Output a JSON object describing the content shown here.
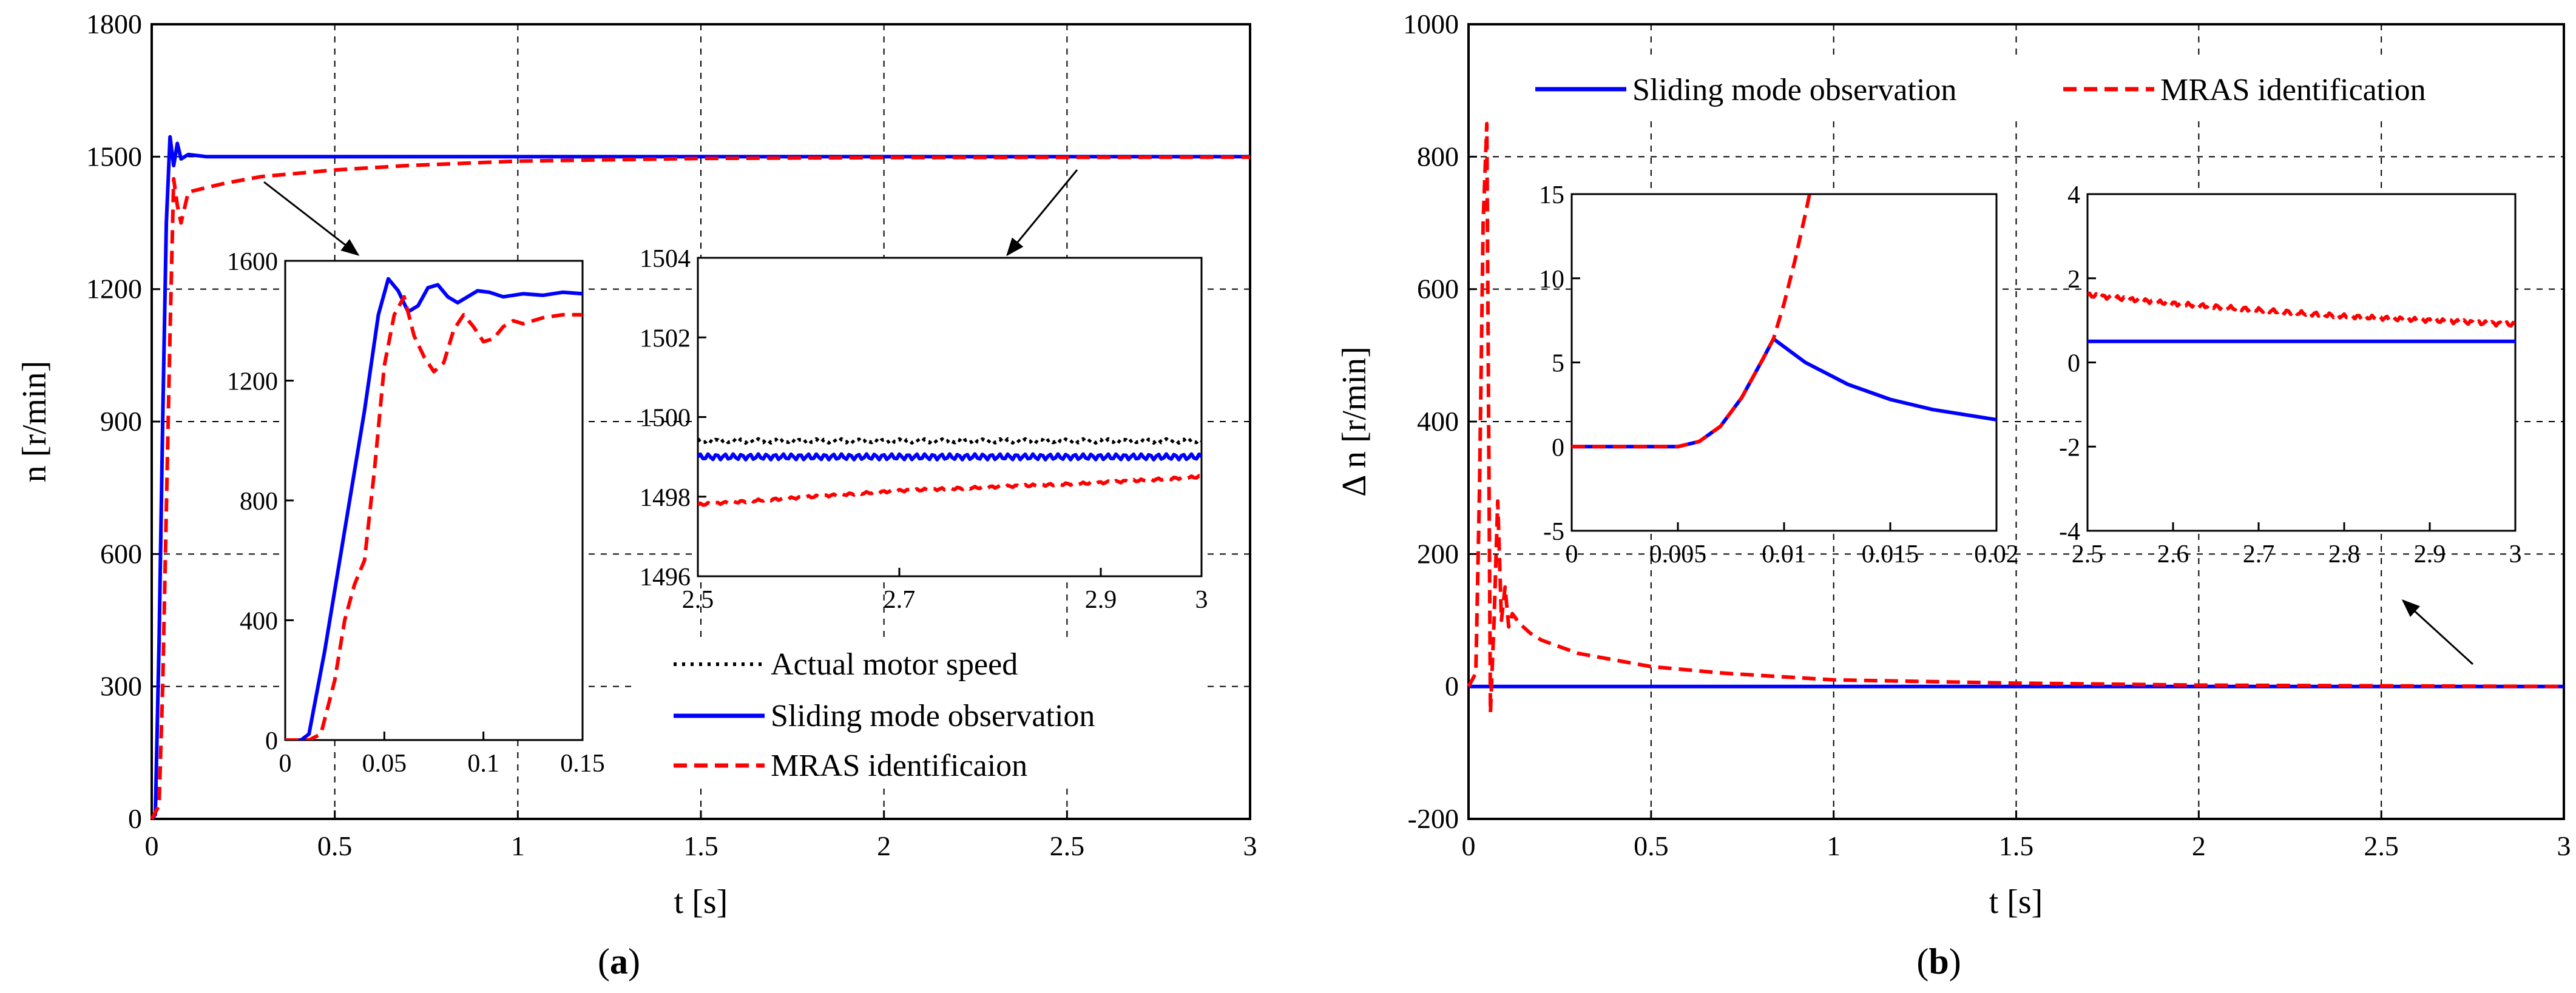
{
  "chart_data": [
    {
      "id": "a",
      "type": "line",
      "panel_label_open": "(",
      "panel_label_letter": "a",
      "panel_label_close": ")",
      "xlabel": "t [s]",
      "ylabel": "n  [r/min]",
      "xlim": [
        0,
        3
      ],
      "ylim": [
        0,
        1800
      ],
      "xticks": [
        0,
        0.5,
        1,
        1.5,
        2,
        2.5,
        3
      ],
      "xtick_labels": [
        "0",
        "0.5",
        "1",
        "1.5",
        "2",
        "2.5",
        "3"
      ],
      "yticks": [
        0,
        300,
        600,
        900,
        1200,
        1500,
        1800
      ],
      "ytick_labels": [
        "0",
        "300",
        "600",
        "900",
        "1200",
        "1500",
        "1800"
      ],
      "grid": true,
      "legend": [
        {
          "label": "Actual motor speed",
          "color": "#000000",
          "style": "dotted"
        },
        {
          "label": "Sliding mode observation",
          "color": "#0000ff",
          "style": "solid"
        },
        {
          "label": "MRAS  identificaion",
          "color": "#ff0000",
          "style": "dashed"
        }
      ],
      "series": [
        {
          "name": "Sliding mode observation",
          "color": "#0000ff",
          "x": [
            0,
            0.01,
            0.02,
            0.03,
            0.04,
            0.05,
            0.06,
            0.07,
            0.08,
            0.1,
            0.15,
            3
          ],
          "y": [
            0,
            10,
            400,
            900,
            1350,
            1545,
            1480,
            1530,
            1495,
            1505,
            1500,
            1500
          ]
        },
        {
          "name": "MRAS  identificaion",
          "color": "#ff0000",
          "x": [
            0,
            0.02,
            0.03,
            0.04,
            0.05,
            0.06,
            0.07,
            0.08,
            0.1,
            0.15,
            0.2,
            0.3,
            0.5,
            0.7,
            1.0,
            1.5,
            2,
            3
          ],
          "y": [
            0,
            30,
            300,
            700,
            1100,
            1450,
            1390,
            1350,
            1420,
            1430,
            1440,
            1455,
            1470,
            1480,
            1490,
            1496,
            1498,
            1499
          ]
        }
      ],
      "insets": [
        {
          "xlim": [
            0,
            0.15
          ],
          "ylim": [
            0,
            1600
          ],
          "xticks": [
            0,
            0.05,
            0.1,
            0.15
          ],
          "xtick_labels": [
            "0",
            "0.05",
            "0.1",
            "0.15"
          ],
          "yticks": [
            0,
            400,
            800,
            1200,
            1600
          ],
          "ytick_labels": [
            "0",
            "400",
            "800",
            "1200",
            "1600"
          ],
          "series": [
            {
              "name": "Sliding mode observation",
              "color": "#0000ff",
              "x": [
                0,
                0.008,
                0.012,
                0.02,
                0.03,
                0.04,
                0.047,
                0.052,
                0.057,
                0.062,
                0.067,
                0.072,
                0.077,
                0.082,
                0.087,
                0.092,
                0.097,
                0.103,
                0.11,
                0.12,
                0.13,
                0.14,
                0.15
              ],
              "y": [
                0,
                0,
                20,
                300,
                700,
                1100,
                1420,
                1540,
                1500,
                1430,
                1450,
                1510,
                1520,
                1480,
                1460,
                1480,
                1500,
                1495,
                1480,
                1490,
                1485,
                1495,
                1490
              ]
            },
            {
              "name": "MRAS  identificaion",
              "color": "#ff0000",
              "x": [
                0,
                0.012,
                0.018,
                0.025,
                0.03,
                0.035,
                0.04,
                0.045,
                0.05,
                0.055,
                0.06,
                0.065,
                0.07,
                0.075,
                0.08,
                0.085,
                0.09,
                0.095,
                0.1,
                0.105,
                0.11,
                0.115,
                0.12,
                0.13,
                0.14,
                0.15
              ],
              "y": [
                0,
                0,
                20,
                200,
                400,
                520,
                600,
                900,
                1250,
                1420,
                1480,
                1350,
                1280,
                1230,
                1260,
                1370,
                1420,
                1380,
                1330,
                1340,
                1380,
                1400,
                1390,
                1410,
                1420,
                1420
              ]
            }
          ]
        },
        {
          "xlim": [
            2.5,
            3
          ],
          "ylim": [
            1496,
            1504
          ],
          "xticks": [
            2.5,
            2.7,
            2.9,
            3
          ],
          "xtick_labels": [
            "2.5",
            "2.7",
            "2.9",
            "3"
          ],
          "yticks": [
            1496,
            1498,
            1500,
            1502,
            1504
          ],
          "ytick_labels": [
            "1496",
            "1498",
            "1500",
            "1502",
            "1504"
          ],
          "series": [
            {
              "name": "Actual motor speed",
              "color": "#000000",
              "style": "dotted",
              "x": [
                2.5,
                3
              ],
              "y": [
                1499.4,
                1499.4
              ],
              "ripple": 0.05
            },
            {
              "name": "Sliding mode observation",
              "color": "#0000ff",
              "style": "solid",
              "x": [
                2.5,
                3
              ],
              "y": [
                1499.0,
                1499.0
              ],
              "ripple": 0.07
            },
            {
              "name": "MRAS  identificaion",
              "color": "#ff0000",
              "style": "dashed",
              "x": [
                2.5,
                2.7,
                2.9,
                3
              ],
              "y": [
                1497.8,
                1498.15,
                1498.35,
                1498.5
              ],
              "ripple": 0.03
            }
          ]
        }
      ]
    },
    {
      "id": "b",
      "type": "line",
      "panel_label_open": "(",
      "panel_label_letter": "b",
      "panel_label_close": ")",
      "xlabel": "t [s]",
      "ylabel": "Δ n [r/min]",
      "xlim": [
        0,
        3
      ],
      "ylim": [
        -200,
        1000
      ],
      "xticks": [
        0,
        0.5,
        1,
        1.5,
        2,
        2.5,
        3
      ],
      "xtick_labels": [
        "0",
        "0.5",
        "1",
        "1.5",
        "2",
        "2.5",
        "3"
      ],
      "yticks": [
        -200,
        0,
        200,
        400,
        600,
        800,
        1000
      ],
      "ytick_labels": [
        "-200",
        "0",
        "200",
        "400",
        "600",
        "800",
        "1000"
      ],
      "grid": true,
      "legend": [
        {
          "label": "Sliding mode observation",
          "color": "#0000ff",
          "style": "solid"
        },
        {
          "label": "MRAS identification",
          "color": "#ff0000",
          "style": "dashed"
        }
      ],
      "series": [
        {
          "name": "Sliding mode observation",
          "color": "#0000ff",
          "x": [
            0,
            0.01,
            3
          ],
          "y": [
            0,
            0,
            0
          ]
        },
        {
          "name": "MRAS identification",
          "color": "#ff0000",
          "x": [
            0,
            0.02,
            0.03,
            0.04,
            0.05,
            0.06,
            0.07,
            0.08,
            0.09,
            0.1,
            0.11,
            0.12,
            0.14,
            0.17,
            0.2,
            0.3,
            0.5,
            0.7,
            1.0,
            1.5,
            2,
            3
          ],
          "y": [
            0,
            20,
            300,
            700,
            850,
            -40,
            100,
            280,
            100,
            150,
            90,
            110,
            95,
            80,
            70,
            50,
            30,
            20,
            10,
            5,
            2,
            0
          ]
        }
      ],
      "insets": [
        {
          "xlim": [
            0,
            0.02
          ],
          "ylim": [
            -5,
            15
          ],
          "xticks": [
            0,
            0.005,
            0.01,
            0.015,
            0.02
          ],
          "xtick_labels": [
            "0",
            "0.005",
            "0.01",
            "0.015",
            "0.02"
          ],
          "yticks": [
            -5,
            0,
            5,
            10,
            15
          ],
          "ytick_labels": [
            "-5",
            "0",
            "5",
            "10",
            "15"
          ],
          "series": [
            {
              "name": "Sliding mode observation",
              "color": "#0000ff",
              "x": [
                0,
                0.005,
                0.006,
                0.007,
                0.008,
                0.009,
                0.0095,
                0.011,
                0.013,
                0.015,
                0.017,
                0.02
              ],
              "y": [
                0,
                0,
                0.3,
                1.2,
                2.9,
                5.2,
                6.4,
                5.0,
                3.7,
                2.8,
                2.2,
                1.6
              ]
            },
            {
              "name": "MRAS identification",
              "color": "#ff0000",
              "x": [
                0,
                0.005,
                0.006,
                0.007,
                0.008,
                0.009,
                0.0095,
                0.01,
                0.0105,
                0.011,
                0.0112
              ],
              "y": [
                0,
                0,
                0.3,
                1.2,
                2.9,
                5.2,
                6.4,
                8.5,
                11,
                13.8,
                15
              ]
            }
          ]
        },
        {
          "xlim": [
            2.5,
            3
          ],
          "ylim": [
            -4,
            4
          ],
          "xticks": [
            2.5,
            2.6,
            2.7,
            2.8,
            2.9,
            3
          ],
          "xtick_labels": [
            "2.5",
            "2.6",
            "2.7",
            "2.8",
            "2.9",
            "3"
          ],
          "yticks": [
            -4,
            -2,
            0,
            2,
            4
          ],
          "ytick_labels": [
            "-4",
            "-2",
            "0",
            "2",
            "4"
          ],
          "series": [
            {
              "name": "Sliding mode observation",
              "color": "#0000ff",
              "style": "solid",
              "x": [
                2.5,
                3
              ],
              "y": [
                0.5,
                0.5
              ]
            },
            {
              "name": "MRAS identification",
              "color": "#ff0000",
              "style": "dashed",
              "x": [
                2.5,
                2.6,
                2.7,
                2.8,
                2.9,
                3
              ],
              "y": [
                1.6,
                1.4,
                1.25,
                1.1,
                1.0,
                0.9
              ],
              "ripple": 0.05
            }
          ]
        }
      ]
    }
  ]
}
